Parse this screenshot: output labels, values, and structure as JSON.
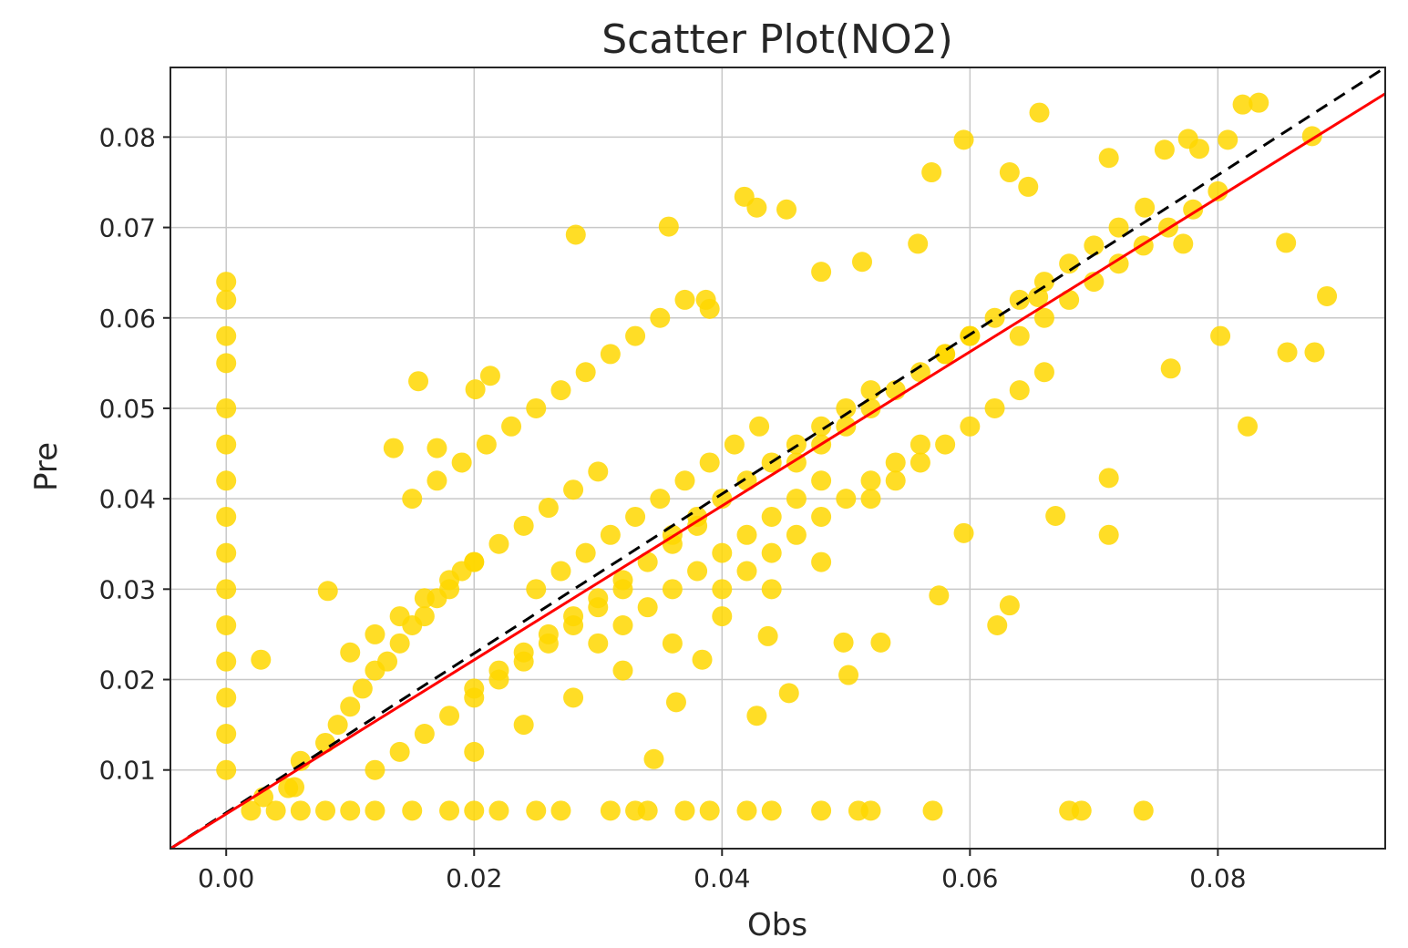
{
  "chart_data": {
    "type": "scatter",
    "title": "Scatter Plot(NO2)",
    "xlabel": "Obs",
    "ylabel": "Pre",
    "xlim": [
      -0.0045,
      0.0935
    ],
    "ylim": [
      0.0013,
      0.0877
    ],
    "xticks": [
      0.0,
      0.02,
      0.04,
      0.06,
      0.08
    ],
    "xtick_labels": [
      "0.00",
      "0.02",
      "0.04",
      "0.06",
      "0.08"
    ],
    "yticks": [
      0.01,
      0.02,
      0.03,
      0.04,
      0.05,
      0.06,
      0.07,
      0.08
    ],
    "ytick_labels": [
      "0.01",
      "0.02",
      "0.03",
      "0.04",
      "0.05",
      "0.06",
      "0.07",
      "0.08"
    ],
    "grid": true,
    "colors": {
      "points": "#ffd700",
      "fit_line": "#ff0000",
      "identity_line": "#000000",
      "grid": "#c8c8c8"
    },
    "series": [
      {
        "kind": "points",
        "x": [
          0.0,
          0.0,
          0.0,
          0.0,
          0.0,
          0.0,
          0.0,
          0.0,
          0.0,
          0.0,
          0.0,
          0.0,
          0.0,
          0.0,
          0.0,
          0.002,
          0.004,
          0.006,
          0.008,
          0.01,
          0.012,
          0.015,
          0.018,
          0.02,
          0.022,
          0.025,
          0.027,
          0.031,
          0.033,
          0.034,
          0.037,
          0.039,
          0.042,
          0.044,
          0.048,
          0.051,
          0.052,
          0.057,
          0.068,
          0.069,
          0.074,
          0.003,
          0.005,
          0.006,
          0.008,
          0.009,
          0.01,
          0.011,
          0.012,
          0.013,
          0.014,
          0.015,
          0.016,
          0.017,
          0.018,
          0.019,
          0.02,
          0.012,
          0.014,
          0.016,
          0.018,
          0.02,
          0.022,
          0.024,
          0.026,
          0.028,
          0.03,
          0.032,
          0.02,
          0.022,
          0.024,
          0.026,
          0.028,
          0.03,
          0.032,
          0.034,
          0.036,
          0.038,
          0.025,
          0.027,
          0.029,
          0.031,
          0.033,
          0.035,
          0.037,
          0.039,
          0.041,
          0.043,
          0.03,
          0.032,
          0.034,
          0.036,
          0.038,
          0.04,
          0.042,
          0.044,
          0.046,
          0.048,
          0.036,
          0.038,
          0.04,
          0.042,
          0.044,
          0.046,
          0.048,
          0.05,
          0.052,
          0.04,
          0.042,
          0.044,
          0.046,
          0.048,
          0.05,
          0.052,
          0.054,
          0.056,
          0.046,
          0.048,
          0.05,
          0.052,
          0.054,
          0.056,
          0.058,
          0.06,
          0.052,
          0.054,
          0.056,
          0.058,
          0.06,
          0.062,
          0.064,
          0.066,
          0.058,
          0.06,
          0.062,
          0.064,
          0.066,
          0.068,
          0.07,
          0.072,
          0.064,
          0.066,
          0.068,
          0.07,
          0.072,
          0.074,
          0.076,
          0.078,
          0.08,
          0.015,
          0.017,
          0.019,
          0.021,
          0.023,
          0.025,
          0.027,
          0.029,
          0.031,
          0.033,
          0.035,
          0.037,
          0.039,
          0.01,
          0.012,
          0.014,
          0.016,
          0.018,
          0.02,
          0.022,
          0.024,
          0.026,
          0.028,
          0.03,
          0.02,
          0.024,
          0.028,
          0.032,
          0.036,
          0.04,
          0.044,
          0.048,
          0.0028,
          0.0055,
          0.0082,
          0.0135,
          0.0155,
          0.017,
          0.0201,
          0.0213,
          0.0282,
          0.0357,
          0.0345,
          0.0418,
          0.0428,
          0.0452,
          0.0513,
          0.0569,
          0.0595,
          0.0632,
          0.0656,
          0.0647,
          0.0712,
          0.0757,
          0.0776,
          0.0785,
          0.0808,
          0.082,
          0.0833,
          0.0855,
          0.0876,
          0.0888,
          0.0878,
          0.0856,
          0.0824,
          0.0802,
          0.0772,
          0.0712,
          0.0712,
          0.0669,
          0.0632,
          0.0622,
          0.0575,
          0.0528,
          0.0502,
          0.0454,
          0.0428,
          0.0363,
          0.0384,
          0.0437,
          0.0498,
          0.0595,
          0.0762,
          0.0741,
          0.0655,
          0.0558,
          0.048,
          0.0387
        ],
        "y": [
          0.064,
          0.062,
          0.058,
          0.055,
          0.05,
          0.046,
          0.042,
          0.038,
          0.034,
          0.03,
          0.026,
          0.022,
          0.018,
          0.014,
          0.01,
          0.0055,
          0.0055,
          0.0055,
          0.0055,
          0.0055,
          0.0055,
          0.0055,
          0.0055,
          0.0055,
          0.0055,
          0.0055,
          0.0055,
          0.0055,
          0.0055,
          0.0055,
          0.0055,
          0.0055,
          0.0055,
          0.0055,
          0.0055,
          0.0055,
          0.0055,
          0.0055,
          0.0055,
          0.0055,
          0.0055,
          0.007,
          0.008,
          0.011,
          0.013,
          0.015,
          0.017,
          0.019,
          0.021,
          0.022,
          0.024,
          0.026,
          0.027,
          0.029,
          0.03,
          0.032,
          0.033,
          0.01,
          0.012,
          0.014,
          0.016,
          0.018,
          0.02,
          0.022,
          0.024,
          0.026,
          0.028,
          0.03,
          0.019,
          0.021,
          0.023,
          0.025,
          0.027,
          0.029,
          0.031,
          0.033,
          0.035,
          0.037,
          0.03,
          0.032,
          0.034,
          0.036,
          0.038,
          0.04,
          0.042,
          0.044,
          0.046,
          0.048,
          0.024,
          0.026,
          0.028,
          0.03,
          0.032,
          0.034,
          0.036,
          0.038,
          0.04,
          0.042,
          0.036,
          0.038,
          0.04,
          0.042,
          0.044,
          0.046,
          0.048,
          0.05,
          0.052,
          0.03,
          0.032,
          0.034,
          0.036,
          0.038,
          0.04,
          0.042,
          0.044,
          0.046,
          0.044,
          0.046,
          0.048,
          0.05,
          0.052,
          0.054,
          0.056,
          0.058,
          0.04,
          0.042,
          0.044,
          0.046,
          0.048,
          0.05,
          0.052,
          0.054,
          0.056,
          0.058,
          0.06,
          0.062,
          0.064,
          0.066,
          0.068,
          0.07,
          0.058,
          0.06,
          0.062,
          0.064,
          0.066,
          0.068,
          0.07,
          0.072,
          0.074,
          0.04,
          0.042,
          0.044,
          0.046,
          0.048,
          0.05,
          0.052,
          0.054,
          0.056,
          0.058,
          0.06,
          0.062,
          0.061,
          0.023,
          0.025,
          0.027,
          0.029,
          0.031,
          0.033,
          0.035,
          0.037,
          0.039,
          0.041,
          0.043,
          0.012,
          0.015,
          0.018,
          0.021,
          0.024,
          0.027,
          0.03,
          0.033,
          0.0222,
          0.0081,
          0.0298,
          0.0456,
          0.053,
          0.0456,
          0.0521,
          0.0536,
          0.0692,
          0.0701,
          0.0112,
          0.0734,
          0.0722,
          0.072,
          0.0662,
          0.0761,
          0.0797,
          0.0761,
          0.0827,
          0.0745,
          0.0777,
          0.0786,
          0.0798,
          0.0787,
          0.0797,
          0.0836,
          0.0838,
          0.0683,
          0.0801,
          0.0624,
          0.0562,
          0.0562,
          0.048,
          0.058,
          0.0682,
          0.036,
          0.0423,
          0.0381,
          0.0282,
          0.026,
          0.0293,
          0.0241,
          0.0205,
          0.0185,
          0.016,
          0.0175,
          0.0222,
          0.0248,
          0.0241,
          0.0362,
          0.0544,
          0.0722,
          0.0623,
          0.0682,
          0.0651,
          0.062
        ]
      },
      {
        "kind": "identity_line",
        "style": "dashed",
        "x": [
          -0.0045,
          0.0935
        ],
        "y": [
          0.0013,
          0.0877
        ]
      },
      {
        "kind": "fit_line",
        "style": "solid",
        "x": [
          -0.0045,
          0.0935
        ],
        "y": [
          0.0013,
          0.0848
        ]
      }
    ]
  }
}
